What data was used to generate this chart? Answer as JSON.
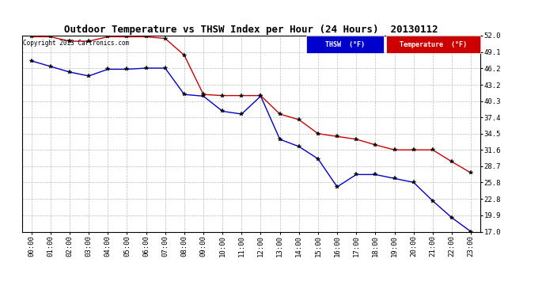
{
  "title": "Outdoor Temperature vs THSW Index per Hour (24 Hours)  20130112",
  "copyright": "Copyright 2013 Cartronics.com",
  "x_labels": [
    "00:00",
    "01:00",
    "02:00",
    "03:00",
    "04:00",
    "05:00",
    "06:00",
    "07:00",
    "08:00",
    "09:00",
    "10:00",
    "11:00",
    "12:00",
    "13:00",
    "14:00",
    "15:00",
    "16:00",
    "17:00",
    "18:00",
    "19:00",
    "20:00",
    "21:00",
    "22:00",
    "23:00"
  ],
  "thsw_values": [
    47.5,
    46.5,
    45.5,
    44.8,
    46.0,
    46.0,
    46.2,
    46.2,
    41.5,
    41.2,
    38.5,
    38.0,
    41.2,
    33.5,
    32.2,
    30.0,
    25.0,
    27.2,
    27.2,
    26.5,
    25.8,
    22.5,
    19.5,
    17.0
  ],
  "temp_values": [
    51.8,
    51.8,
    51.0,
    51.0,
    51.8,
    51.8,
    51.8,
    51.5,
    48.5,
    41.5,
    41.3,
    41.3,
    41.3,
    38.0,
    37.0,
    34.5,
    34.0,
    33.5,
    32.5,
    31.6,
    31.6,
    31.6,
    29.5,
    27.5
  ],
  "thsw_color": "#0000cc",
  "temp_color": "#cc0000",
  "background_color": "#ffffff",
  "plot_bg_color": "#ffffff",
  "grid_color": "#bbbbbb",
  "ylim_min": 17.0,
  "ylim_max": 52.0,
  "yticks": [
    17.0,
    19.9,
    22.8,
    25.8,
    28.7,
    31.6,
    34.5,
    37.4,
    40.3,
    43.2,
    46.2,
    49.1,
    52.0
  ],
  "legend_thsw_bg": "#0000cc",
  "legend_temp_bg": "#cc0000",
  "legend_text_color": "#ffffff",
  "figwidth": 6.9,
  "figheight": 3.75,
  "dpi": 100
}
